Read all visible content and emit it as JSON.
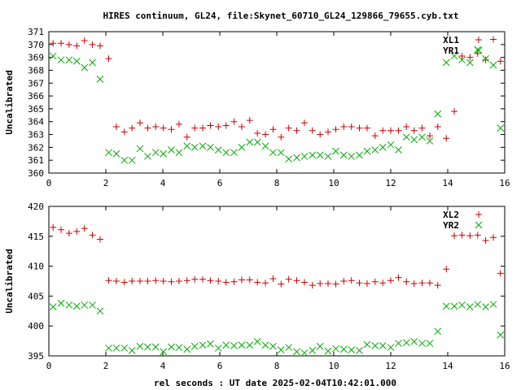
{
  "title": "HIRES continuum, GL24, file:Skynet_60710_GL24_129866_79655.cyb.txt",
  "xlabel": "rel seconds : UT date 2025-02-04T10:42:01.000",
  "colors": {
    "red_series": "#cc0000",
    "green_series": "#00aa00",
    "frame": "#000000"
  },
  "chart_data": [
    {
      "type": "scatter",
      "ylabel": "Uncalibrated",
      "xlim": [
        0,
        16
      ],
      "ylim": [
        360,
        371
      ],
      "x_ticks": [
        0,
        2,
        4,
        6,
        8,
        10,
        12,
        14,
        16
      ],
      "y_ticks": [
        360,
        361,
        362,
        363,
        364,
        365,
        366,
        367,
        368,
        369,
        370,
        371
      ],
      "legend_position": "top-right",
      "series": [
        {
          "name": "XL1",
          "marker": "plus",
          "color": "#cc0000",
          "x": [
            0.15,
            0.43,
            0.71,
            0.98,
            1.25,
            1.53,
            1.8,
            2.1,
            2.37,
            2.65,
            2.92,
            3.2,
            3.47,
            3.75,
            4.02,
            4.3,
            4.57,
            4.85,
            5.12,
            5.4,
            5.67,
            5.95,
            6.22,
            6.5,
            6.77,
            7.05,
            7.32,
            7.6,
            7.87,
            8.15,
            8.42,
            8.7,
            8.97,
            9.25,
            9.52,
            9.8,
            10.07,
            10.35,
            10.62,
            10.9,
            11.17,
            11.45,
            11.72,
            12.0,
            12.27,
            12.55,
            12.82,
            13.1,
            13.37,
            13.65,
            13.95,
            14.23,
            14.5,
            14.78,
            15.05,
            15.33,
            15.6,
            15.85
          ],
          "y": [
            370.1,
            370.1,
            370.0,
            369.9,
            370.3,
            370.0,
            369.9,
            368.9,
            363.6,
            363.2,
            363.5,
            363.9,
            363.5,
            363.6,
            363.5,
            363.4,
            363.8,
            362.8,
            363.5,
            363.5,
            363.7,
            363.6,
            363.7,
            364.0,
            363.6,
            364.1,
            363.1,
            363.0,
            363.4,
            362.8,
            363.5,
            363.3,
            363.9,
            363.3,
            363.0,
            363.2,
            363.4,
            363.6,
            363.6,
            363.5,
            363.5,
            362.9,
            363.3,
            363.3,
            363.3,
            363.6,
            363.3,
            363.5,
            362.9,
            363.6,
            362.7,
            364.8,
            369.1,
            369.0,
            369.3,
            368.8,
            370.4,
            368.7
          ]
        },
        {
          "name": "YR1",
          "marker": "cross",
          "color": "#00aa00",
          "x": [
            0.15,
            0.43,
            0.71,
            0.98,
            1.25,
            1.53,
            1.8,
            2.1,
            2.37,
            2.65,
            2.92,
            3.2,
            3.47,
            3.75,
            4.02,
            4.3,
            4.57,
            4.85,
            5.12,
            5.4,
            5.67,
            5.95,
            6.22,
            6.5,
            6.77,
            7.05,
            7.32,
            7.6,
            7.87,
            8.15,
            8.42,
            8.7,
            8.97,
            9.25,
            9.52,
            9.8,
            10.07,
            10.35,
            10.62,
            10.9,
            11.17,
            11.45,
            11.72,
            12.0,
            12.27,
            12.55,
            12.82,
            13.1,
            13.37,
            13.65,
            13.95,
            14.23,
            14.5,
            14.78,
            15.05,
            15.33,
            15.6,
            15.85
          ],
          "y": [
            369.1,
            368.8,
            368.8,
            368.7,
            368.2,
            368.6,
            367.3,
            361.6,
            361.5,
            361.0,
            361.0,
            361.9,
            361.3,
            361.6,
            361.5,
            361.8,
            361.6,
            362.1,
            362.0,
            362.1,
            362.0,
            361.8,
            361.6,
            361.6,
            362.0,
            362.4,
            362.4,
            362.1,
            361.6,
            361.6,
            361.1,
            361.2,
            361.3,
            361.4,
            361.4,
            361.3,
            361.7,
            361.4,
            361.3,
            361.4,
            361.7,
            361.8,
            362.0,
            362.2,
            361.8,
            362.8,
            362.6,
            362.8,
            362.5,
            364.6,
            368.6,
            369.1,
            368.8,
            368.6,
            369.6,
            368.9,
            368.4,
            363.5
          ]
        }
      ]
    },
    {
      "type": "scatter",
      "ylabel": "Uncalibrated",
      "xlim": [
        0,
        16
      ],
      "ylim": [
        395,
        420
      ],
      "x_ticks": [
        0,
        2,
        4,
        6,
        8,
        10,
        12,
        14,
        16
      ],
      "y_ticks": [
        395,
        400,
        405,
        410,
        415,
        420
      ],
      "legend_position": "top-right",
      "series": [
        {
          "name": "XL2",
          "marker": "plus",
          "color": "#cc0000",
          "x": [
            0.15,
            0.43,
            0.71,
            0.98,
            1.25,
            1.53,
            1.8,
            2.1,
            2.37,
            2.65,
            2.92,
            3.2,
            3.47,
            3.75,
            4.02,
            4.3,
            4.57,
            4.85,
            5.12,
            5.4,
            5.67,
            5.95,
            6.22,
            6.5,
            6.77,
            7.05,
            7.32,
            7.6,
            7.87,
            8.15,
            8.42,
            8.7,
            8.97,
            9.25,
            9.52,
            9.8,
            10.07,
            10.35,
            10.62,
            10.9,
            11.17,
            11.45,
            11.72,
            12.0,
            12.27,
            12.55,
            12.82,
            13.1,
            13.37,
            13.65,
            13.95,
            14.23,
            14.5,
            14.78,
            15.05,
            15.33,
            15.6,
            15.85
          ],
          "y": [
            416.5,
            416.1,
            415.5,
            415.8,
            416.3,
            415.2,
            414.5,
            407.6,
            407.5,
            407.3,
            407.5,
            407.5,
            407.5,
            407.6,
            407.5,
            407.4,
            407.5,
            407.6,
            407.8,
            407.8,
            407.6,
            407.5,
            407.3,
            407.4,
            407.7,
            407.7,
            407.3,
            407.2,
            407.9,
            407.0,
            407.8,
            407.6,
            407.3,
            406.8,
            407.1,
            407.1,
            407.0,
            407.5,
            407.6,
            407.2,
            407.1,
            407.4,
            407.2,
            407.6,
            408.1,
            407.4,
            407.1,
            407.2,
            407.2,
            406.8,
            409.5,
            415.1,
            415.2,
            415.1,
            415.2,
            414.3,
            414.8,
            408.8
          ]
        },
        {
          "name": "YR2",
          "marker": "cross",
          "color": "#00aa00",
          "x": [
            0.15,
            0.43,
            0.71,
            0.98,
            1.25,
            1.53,
            1.8,
            2.1,
            2.37,
            2.65,
            2.92,
            3.2,
            3.47,
            3.75,
            4.02,
            4.3,
            4.57,
            4.85,
            5.12,
            5.4,
            5.67,
            5.95,
            6.22,
            6.5,
            6.77,
            7.05,
            7.32,
            7.6,
            7.87,
            8.15,
            8.42,
            8.7,
            8.97,
            9.25,
            9.52,
            9.8,
            10.07,
            10.35,
            10.62,
            10.9,
            11.17,
            11.45,
            11.72,
            12.0,
            12.27,
            12.55,
            12.82,
            13.1,
            13.37,
            13.65,
            13.95,
            14.23,
            14.5,
            14.78,
            15.05,
            15.33,
            15.6,
            15.85
          ],
          "y": [
            403.2,
            403.8,
            403.5,
            403.3,
            403.5,
            403.5,
            402.5,
            396.3,
            396.3,
            396.3,
            395.9,
            396.6,
            396.5,
            396.5,
            395.7,
            396.5,
            396.4,
            396.1,
            396.6,
            396.8,
            397.0,
            396.3,
            396.8,
            396.7,
            396.8,
            396.8,
            397.4,
            396.8,
            396.6,
            396.0,
            396.4,
            395.7,
            395.5,
            395.9,
            396.6,
            395.8,
            396.2,
            396.1,
            396.0,
            395.9,
            396.9,
            396.7,
            396.7,
            396.4,
            397.1,
            397.2,
            397.4,
            397.1,
            397.1,
            399.1,
            403.3,
            403.3,
            403.5,
            403.2,
            403.6,
            403.2,
            403.6,
            398.5
          ]
        }
      ]
    }
  ]
}
